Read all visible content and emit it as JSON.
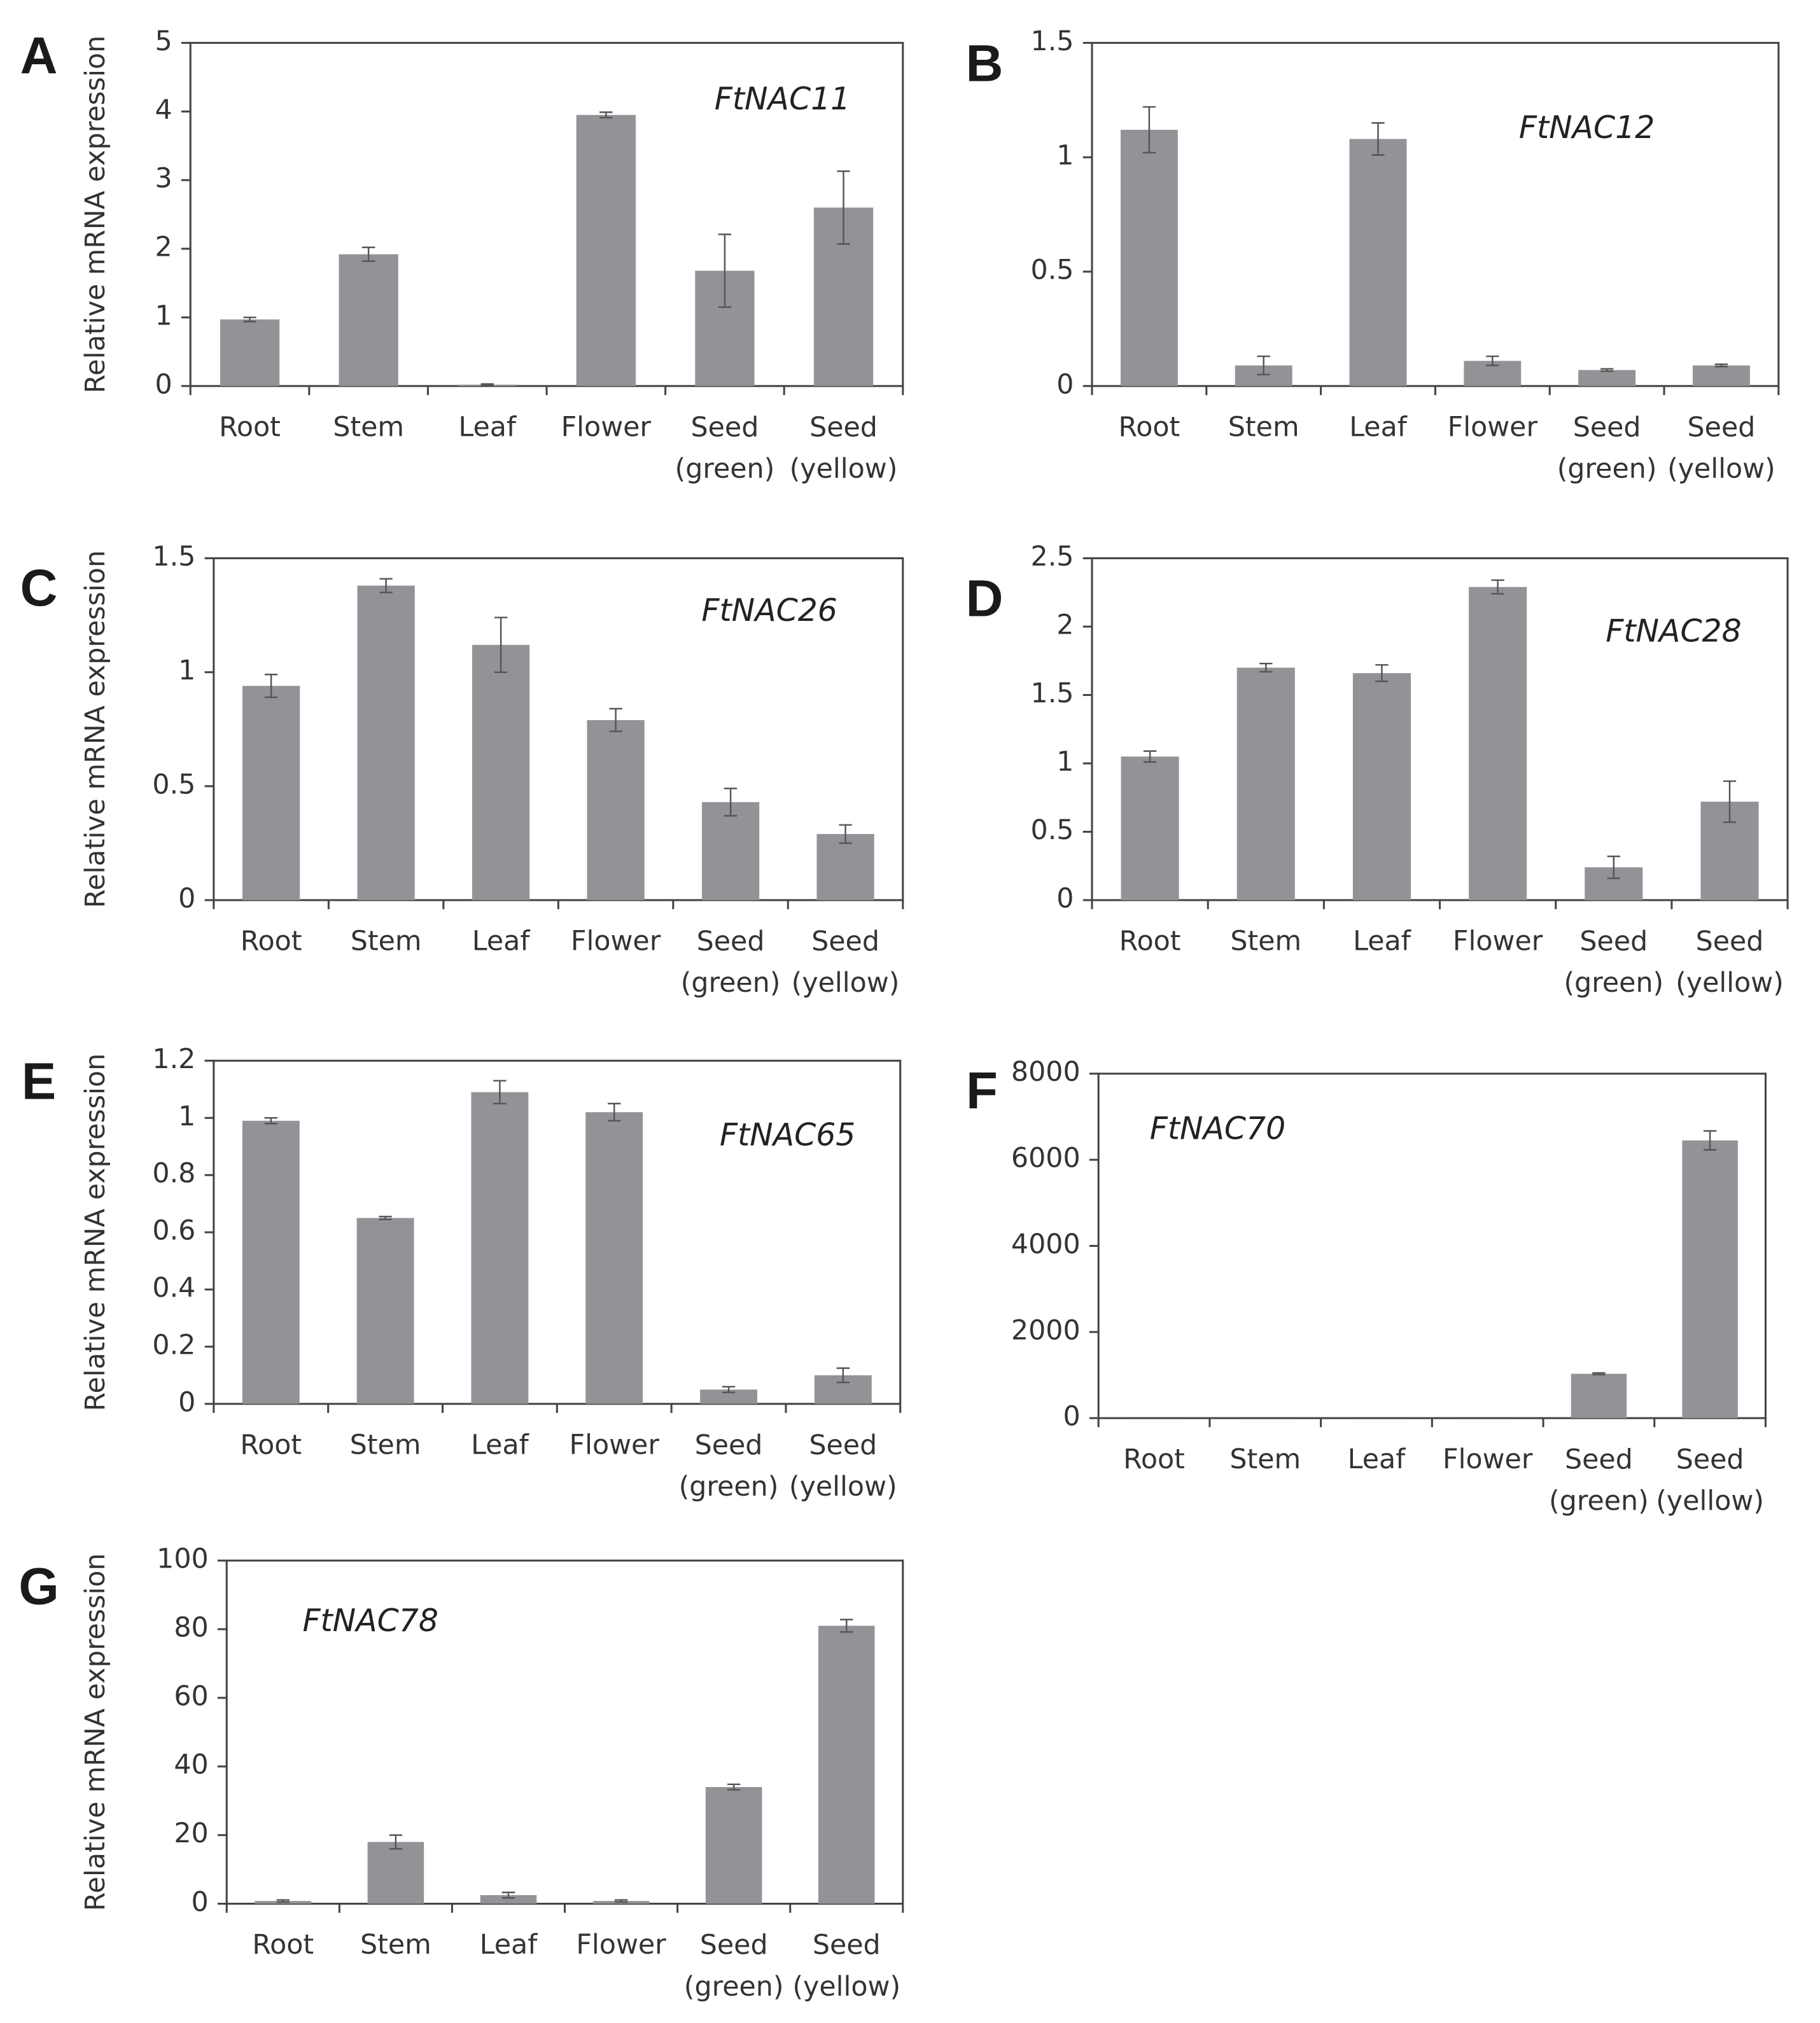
{
  "chart_data": [
    {
      "type": "bar",
      "panel": "A",
      "title": "FtNAC11",
      "y_label": "Relative mRNA expression",
      "categories": [
        "Root",
        "Stem",
        "Leaf",
        "Flower",
        "Seed (green)",
        "Seed (yellow)"
      ],
      "values": [
        0.97,
        1.92,
        0.02,
        3.95,
        1.68,
        2.6
      ],
      "errors": [
        0.03,
        0.1,
        0.01,
        0.04,
        0.53,
        0.53
      ],
      "ylim": [
        0,
        5
      ],
      "yticks": [
        0,
        1,
        2,
        3,
        4,
        5
      ],
      "color": "#929397"
    },
    {
      "type": "bar",
      "panel": "B",
      "title": "FtNAC12",
      "categories": [
        "Root",
        "Stem",
        "Leaf",
        "Flower",
        "Seed (green)",
        "Seed (yellow)"
      ],
      "values": [
        1.12,
        0.09,
        1.08,
        0.11,
        0.07,
        0.09
      ],
      "errors": [
        0.1,
        0.04,
        0.07,
        0.02,
        0.005,
        0.005
      ],
      "ylim": [
        0,
        1.5
      ],
      "yticks": [
        0,
        0.5,
        1,
        1.5
      ],
      "color": "#929397"
    },
    {
      "type": "bar",
      "panel": "C",
      "title": "FtNAC26",
      "y_label": "Relative mRNA expression",
      "categories": [
        "Root",
        "Stem",
        "Leaf",
        "Flower",
        "Seed (green)",
        "Seed (yellow)"
      ],
      "values": [
        0.94,
        1.38,
        1.12,
        0.79,
        0.43,
        0.29
      ],
      "errors": [
        0.05,
        0.03,
        0.12,
        0.05,
        0.06,
        0.04
      ],
      "ylim": [
        0,
        1.5
      ],
      "yticks": [
        0,
        0.5,
        1,
        1.5
      ],
      "color": "#929397"
    },
    {
      "type": "bar",
      "panel": "D",
      "title": "FtNAC28",
      "categories": [
        "Root",
        "Stem",
        "Leaf",
        "Flower",
        "Seed (green)",
        "Seed (yellow)"
      ],
      "values": [
        1.05,
        1.7,
        1.66,
        2.29,
        0.24,
        0.72
      ],
      "errors": [
        0.04,
        0.03,
        0.06,
        0.05,
        0.08,
        0.15
      ],
      "ylim": [
        0,
        2.5
      ],
      "yticks": [
        0,
        0.5,
        1,
        1.5,
        2,
        2.5
      ],
      "color": "#929397"
    },
    {
      "type": "bar",
      "panel": "E",
      "title": "FtNAC65",
      "y_label": "Relative mRNA expression",
      "categories": [
        "Root",
        "Stem",
        "Leaf",
        "Flower",
        "Seed (green)",
        "Seed (yellow)"
      ],
      "values": [
        0.99,
        0.65,
        1.09,
        1.02,
        0.05,
        0.1
      ],
      "errors": [
        0.01,
        0.005,
        0.04,
        0.03,
        0.01,
        0.025
      ],
      "ylim": [
        0,
        1.2
      ],
      "yticks": [
        0,
        0.2,
        0.4,
        0.6,
        0.8,
        1,
        1.2
      ],
      "color": "#929397"
    },
    {
      "type": "bar",
      "panel": "F",
      "title": "FtNAC70",
      "categories": [
        "Root",
        "Stem",
        "Leaf",
        "Flower",
        "Seed (green)",
        "Seed (yellow)"
      ],
      "values": [
        1,
        1,
        1,
        1,
        1030,
        6450
      ],
      "errors": [
        0,
        0,
        0,
        0,
        20,
        220
      ],
      "ylim": [
        0,
        8000
      ],
      "yticks": [
        0,
        2000,
        4000,
        6000,
        8000
      ],
      "color": "#929397"
    },
    {
      "type": "bar",
      "panel": "G",
      "title": "FtNAC78",
      "y_label": "Relative mRNA expression",
      "categories": [
        "Root",
        "Stem",
        "Leaf",
        "Flower",
        "Seed (green)",
        "Seed (yellow)"
      ],
      "values": [
        0.8,
        18,
        2.5,
        0.8,
        34,
        81
      ],
      "errors": [
        0.3,
        2,
        0.8,
        0.3,
        0.8,
        1.8
      ],
      "ylim": [
        0,
        100
      ],
      "yticks": [
        0,
        20,
        40,
        60,
        80,
        100
      ],
      "color": "#929397"
    }
  ]
}
